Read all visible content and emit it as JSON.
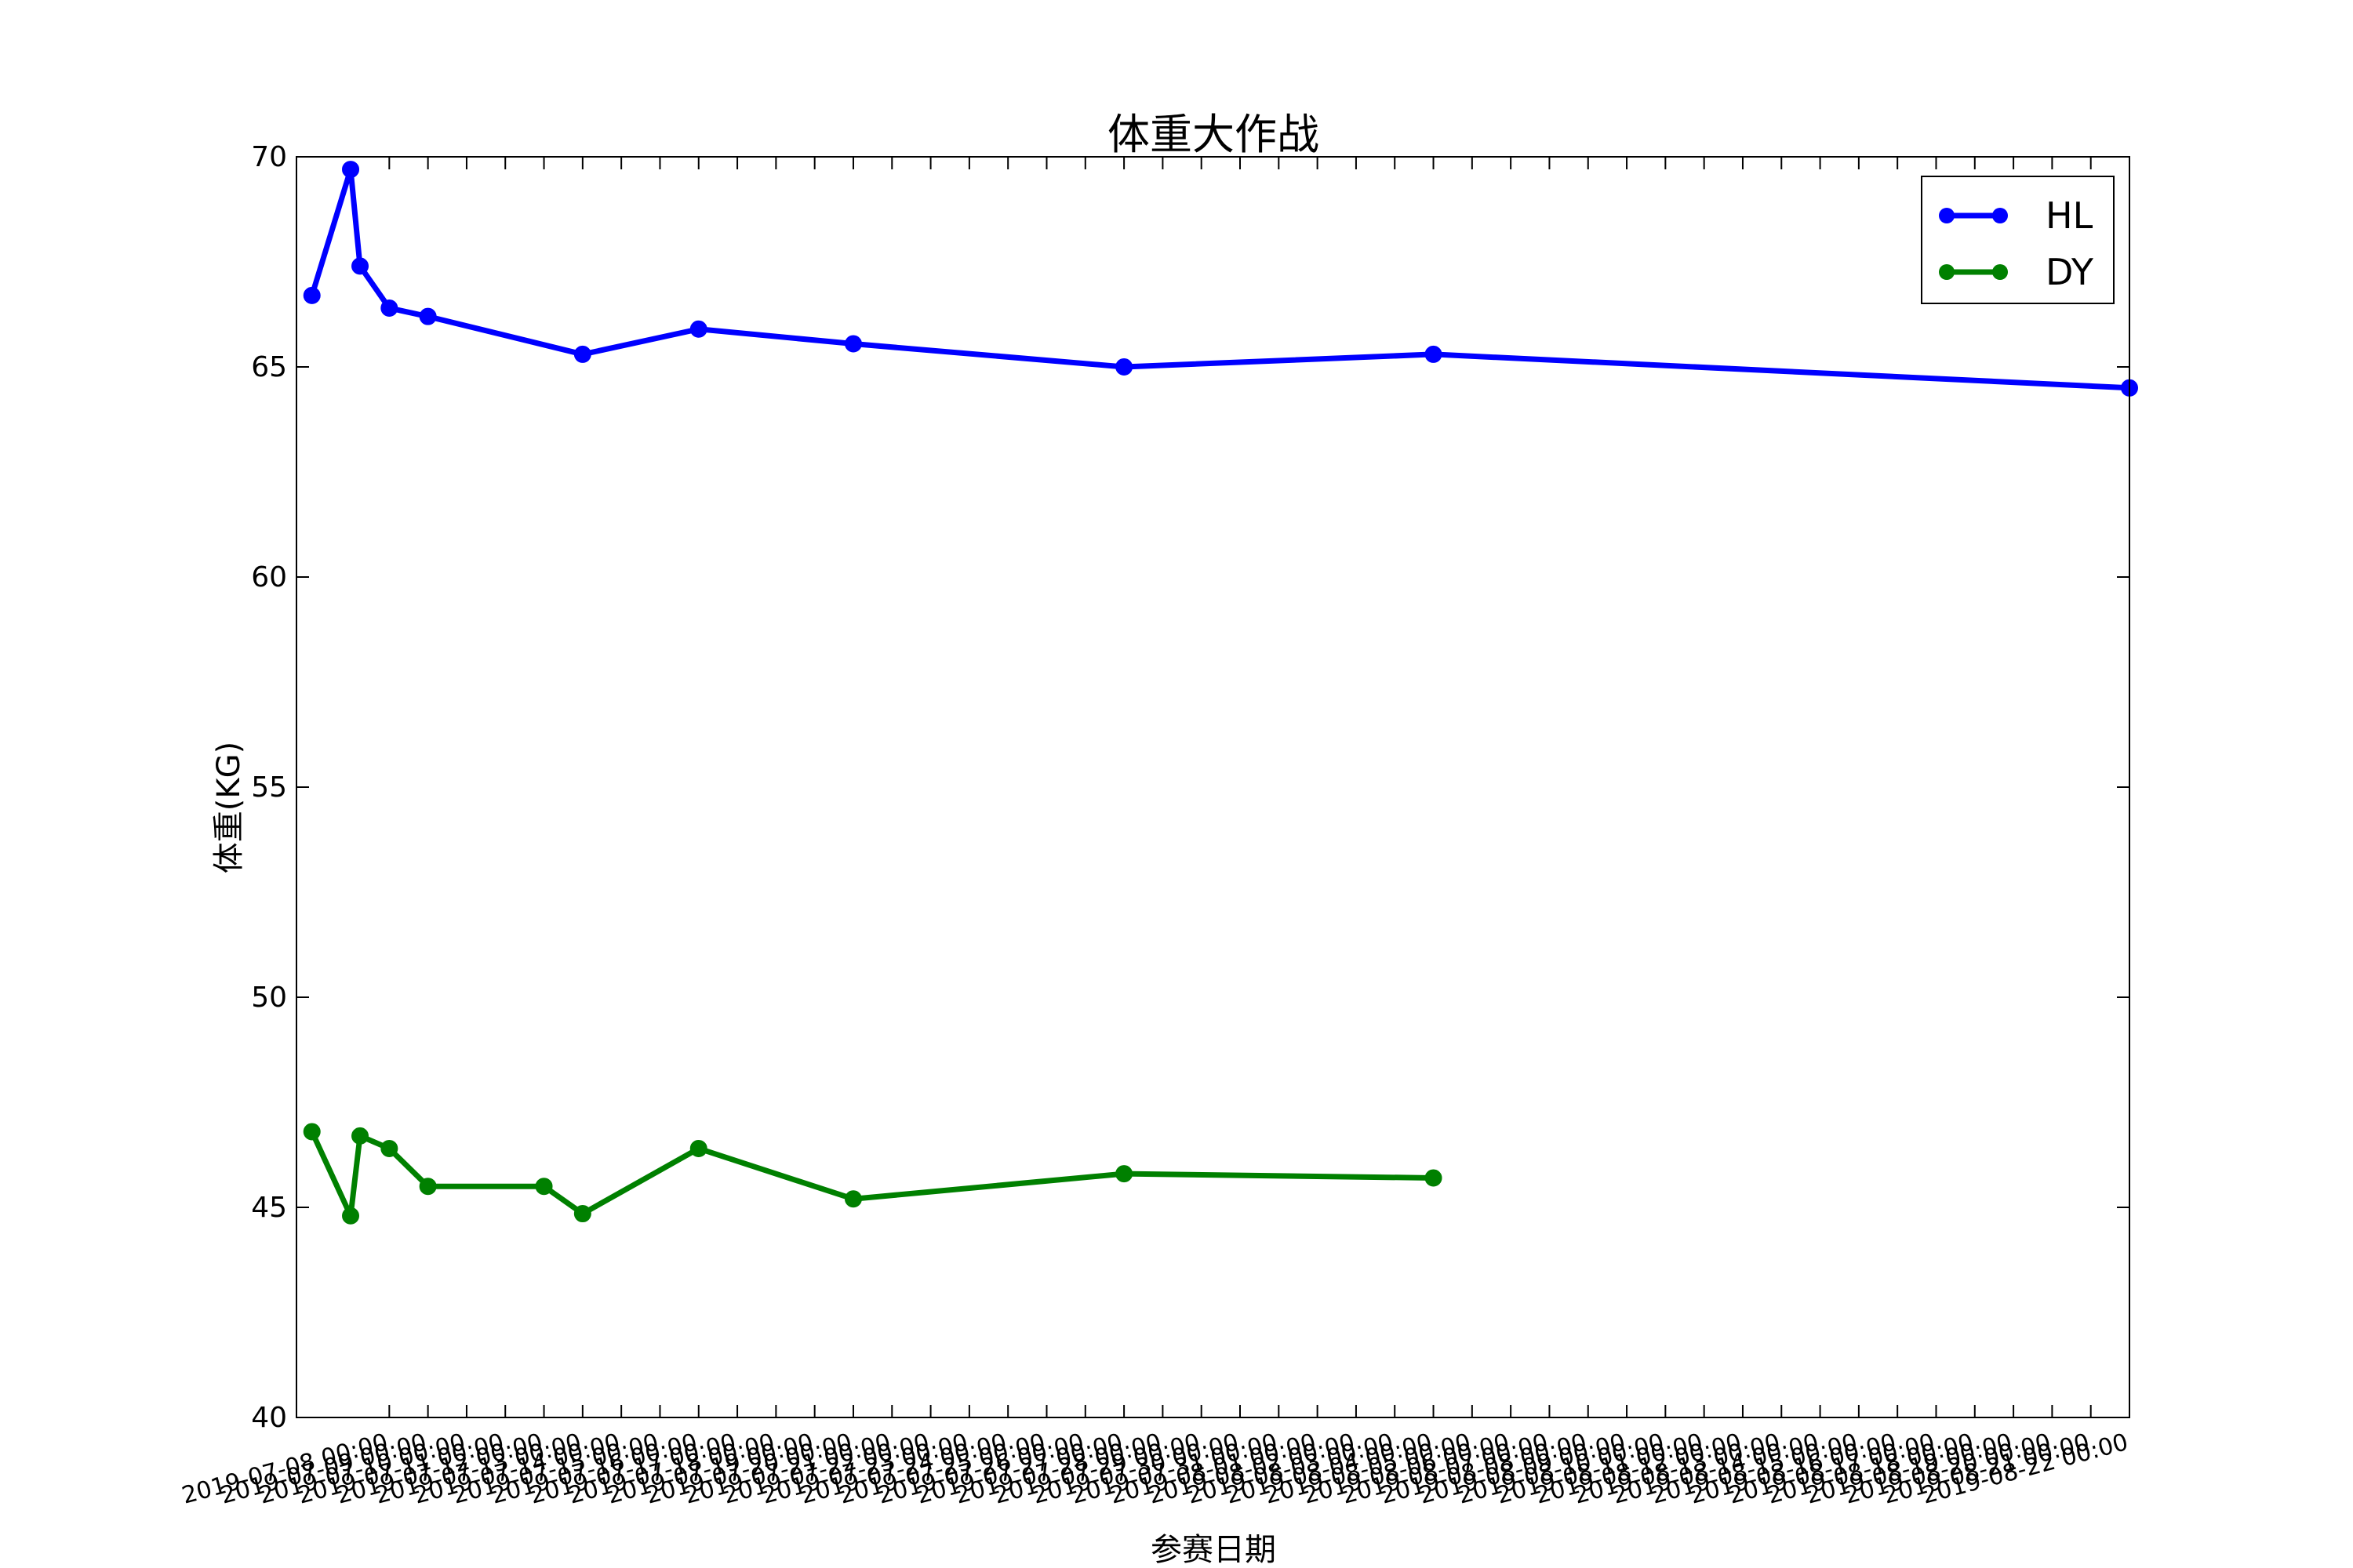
{
  "chart_data": {
    "type": "line",
    "title": "体重大作战",
    "xlabel": "参赛日期",
    "ylabel": "体重(KG)",
    "ylim": [
      40,
      70
    ],
    "yticks": [
      "40",
      "45",
      "50",
      "55",
      "60",
      "65",
      "70"
    ],
    "xlim": [
      "2019-07-08",
      "2019-08-22"
    ],
    "x_tick_labels": [
      "2019-07-08 00:00",
      "2019-07-09 00:00",
      "2019-07-10 00:00",
      "2019-07-11 00:00",
      "2019-07-12 00:00",
      "2019-07-13 00:00",
      "2019-07-14 00:00",
      "2019-07-15 00:00",
      "2019-07-16 00:00",
      "2019-07-17 00:00",
      "2019-07-18 00:00",
      "2019-07-19 00:00",
      "2019-07-20 00:00",
      "2019-07-21 00:00",
      "2019-07-22 00:00",
      "2019-07-23 00:00",
      "2019-07-24 00:00",
      "2019-07-25 00:00",
      "2019-07-26 00:00",
      "2019-07-27 00:00",
      "2019-07-28 00:00",
      "2019-07-29 00:00",
      "2019-07-30 00:00",
      "2019-07-31 00:00",
      "2019-08-01 00:00",
      "2019-08-02 00:00",
      "2019-08-03 00:00",
      "2019-08-04 00:00",
      "2019-08-05 00:00",
      "2019-08-06 00:00",
      "2019-08-07 00:00",
      "2019-08-08 00:00",
      "2019-08-09 00:00",
      "2019-08-10 00:00",
      "2019-08-11 00:00",
      "2019-08-12 00:00",
      "2019-08-13 00:00",
      "2019-08-14 00:00",
      "2019-08-15 00:00",
      "2019-08-16 00:00",
      "2019-08-17 00:00",
      "2019-08-18 00:00",
      "2019-08-19 00:00",
      "2019-08-20 00:00",
      "2019-08-21 00:00",
      "2019-08-22 00:00"
    ],
    "series": [
      {
        "name": "HL",
        "color": "#0000ff",
        "points": [
          {
            "x": "2019-07-06",
            "y": 66.7
          },
          {
            "x": "2019-07-07",
            "y": 69.7
          },
          {
            "x": "2019-07-07",
            "y": 67.4
          },
          {
            "x": "2019-07-08",
            "y": 66.4
          },
          {
            "x": "2019-07-09",
            "y": 66.2
          },
          {
            "x": "2019-07-13",
            "y": 65.3
          },
          {
            "x": "2019-07-16",
            "y": 65.9
          },
          {
            "x": "2019-07-20",
            "y": 65.55
          },
          {
            "x": "2019-07-27",
            "y": 65.0
          },
          {
            "x": "2019-08-04",
            "y": 65.3
          },
          {
            "x": "2019-08-22",
            "y": 64.5
          }
        ]
      },
      {
        "name": "DY",
        "color": "#008000",
        "points": [
          {
            "x": "2019-07-06",
            "y": 46.8
          },
          {
            "x": "2019-07-07",
            "y": 44.8
          },
          {
            "x": "2019-07-07",
            "y": 46.7
          },
          {
            "x": "2019-07-08",
            "y": 46.4
          },
          {
            "x": "2019-07-09",
            "y": 45.5
          },
          {
            "x": "2019-07-12",
            "y": 45.5
          },
          {
            "x": "2019-07-13",
            "y": 44.85
          },
          {
            "x": "2019-07-16",
            "y": 46.4
          },
          {
            "x": "2019-07-20",
            "y": 45.2
          },
          {
            "x": "2019-07-27",
            "y": 45.8
          },
          {
            "x": "2019-08-04",
            "y": 45.7
          }
        ]
      }
    ],
    "legend_position": "top-right",
    "grid": false
  }
}
